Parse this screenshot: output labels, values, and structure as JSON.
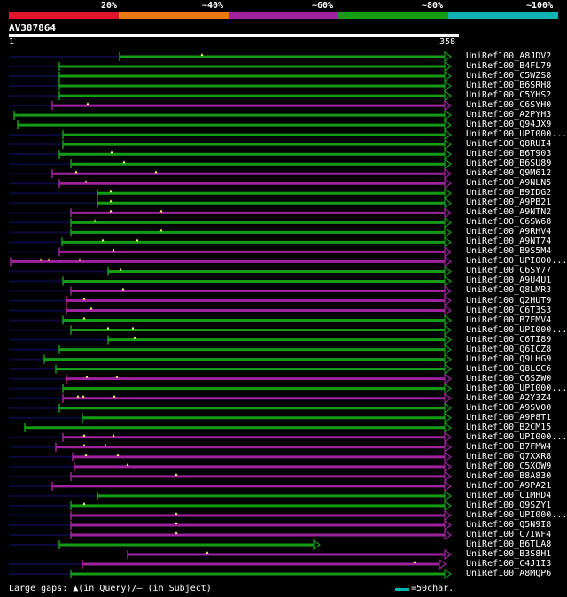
{
  "legend": [
    {
      "label": "20%",
      "color": "#e0142a"
    },
    {
      "label": "~40%",
      "color": "#e87814"
    },
    {
      "label": "~60%",
      "color": "#a0229f"
    },
    {
      "label": "~80%",
      "color": "#139c14"
    },
    {
      "label": "~100%",
      "color": "#12b2b4"
    }
  ],
  "query": {
    "name": "AV387864",
    "start": "1",
    "end": "358"
  },
  "colors": {
    "green": "#139c14",
    "purple": "#a0229f",
    "dim": "#0a0a3c",
    "tick": "#ffff66"
  },
  "hits": [
    {
      "label": "UniRef100_A8JDV2",
      "color": "green",
      "qstart": 135,
      "qend": 503,
      "gap": [
        [
          10,
          135
        ]
      ],
      "ticks": [
        228
      ]
    },
    {
      "label": "UniRef100_B4FL79",
      "color": "green",
      "qstart": 67,
      "qend": 503,
      "gap": [
        [
          10,
          67
        ]
      ],
      "ticks": []
    },
    {
      "label": "UniRef100_C5WZS8",
      "color": "green",
      "qstart": 67,
      "qend": 503,
      "gap": [
        [
          10,
          67
        ]
      ],
      "ticks": []
    },
    {
      "label": "UniRef100_B6SRH8",
      "color": "green",
      "qstart": 67,
      "qend": 503,
      "gap": [
        [
          10,
          67
        ]
      ],
      "ticks": []
    },
    {
      "label": "UniRef100_C5YHS2",
      "color": "green",
      "qstart": 67,
      "qend": 503,
      "gap": [
        [
          10,
          67
        ]
      ],
      "ticks": []
    },
    {
      "label": "UniRef100_C6SYH0",
      "color": "purple",
      "qstart": 59,
      "qend": 503,
      "gap": [
        [
          10,
          59
        ]
      ],
      "ticks": [
        99
      ]
    },
    {
      "label": "UniRef100_A2PYH3",
      "color": "green",
      "qstart": 16,
      "qend": 503,
      "gap": [],
      "ticks": []
    },
    {
      "label": "UniRef100_Q94JX9",
      "color": "green",
      "qstart": 20,
      "qend": 503,
      "gap": [],
      "ticks": []
    },
    {
      "label": "UniRef100_UPI000...",
      "color": "green",
      "qstart": 71,
      "qend": 503,
      "gap": [
        [
          10,
          71
        ]
      ],
      "ticks": []
    },
    {
      "label": "UniRef100_Q8RUI4",
      "color": "green",
      "qstart": 71,
      "qend": 503,
      "gap": [
        [
          10,
          71
        ]
      ],
      "ticks": []
    },
    {
      "label": "UniRef100_B6T903",
      "color": "green",
      "qstart": 67,
      "qend": 503,
      "gap": [
        [
          10,
          67
        ]
      ],
      "ticks": [
        126
      ]
    },
    {
      "label": "UniRef100_B6SU89",
      "color": "green",
      "qstart": 80,
      "qend": 503,
      "gap": [
        [
          10,
          80
        ]
      ],
      "ticks": [
        140
      ]
    },
    {
      "label": "UniRef100_Q9M612",
      "color": "purple",
      "qstart": 59,
      "qend": 503,
      "gap": [
        [
          10,
          59
        ]
      ],
      "ticks": [
        86,
        176
      ]
    },
    {
      "label": "UniRef100_A9NLN5",
      "color": "purple",
      "qstart": 67,
      "qend": 503,
      "gap": [
        [
          10,
          67
        ]
      ],
      "ticks": [
        97
      ]
    },
    {
      "label": "UniRef100_B9IDG2",
      "color": "green",
      "qstart": 110,
      "qend": 503,
      "gap": [
        [
          10,
          110
        ]
      ],
      "ticks": [
        125
      ]
    },
    {
      "label": "UniRef100_A9PB21",
      "color": "green",
      "qstart": 110,
      "qend": 503,
      "gap": [
        [
          10,
          110
        ]
      ],
      "ticks": [
        125
      ]
    },
    {
      "label": "UniRef100_A9NTN2",
      "color": "purple",
      "qstart": 80,
      "qend": 503,
      "gap": [
        [
          10,
          80
        ]
      ],
      "ticks": [
        125,
        182
      ]
    },
    {
      "label": "UniRef100_C6SW68",
      "color": "green",
      "qstart": 80,
      "qend": 503,
      "gap": [
        [
          10,
          80
        ]
      ],
      "ticks": [
        107
      ]
    },
    {
      "label": "UniRef100_A9RHV4",
      "color": "green",
      "qstart": 80,
      "qend": 503,
      "gap": [
        [
          10,
          80
        ]
      ],
      "ticks": [
        182
      ]
    },
    {
      "label": "UniRef100_A9NT74",
      "color": "green",
      "qstart": 70,
      "qend": 503,
      "gap": [
        [
          10,
          70
        ]
      ],
      "ticks": [
        116,
        155
      ]
    },
    {
      "label": "UniRef100_B9S5M4",
      "color": "purple",
      "qstart": 67,
      "qend": 503,
      "gap": [
        [
          10,
          67
        ]
      ],
      "ticks": [
        128
      ]
    },
    {
      "label": "UniRef100_UPI000...",
      "color": "purple",
      "qstart": 12,
      "qend": 503,
      "gap": [],
      "ticks": [
        46,
        55,
        90
      ]
    },
    {
      "label": "UniRef100_C6SY77",
      "color": "green",
      "qstart": 122,
      "qend": 503,
      "gap": [
        [
          10,
          122
        ]
      ],
      "ticks": [
        136
      ]
    },
    {
      "label": "UniRef100_A9U4U1",
      "color": "green",
      "qstart": 71,
      "qend": 503,
      "gap": [
        [
          10,
          71
        ]
      ],
      "ticks": []
    },
    {
      "label": "UniRef100_Q8LMR3",
      "color": "purple",
      "qstart": 80,
      "qend": 503,
      "gap": [
        [
          10,
          80
        ]
      ],
      "ticks": [
        139
      ]
    },
    {
      "label": "UniRef100_Q2HUT9",
      "color": "purple",
      "qstart": 75,
      "qend": 503,
      "gap": [
        [
          10,
          75
        ]
      ],
      "ticks": [
        95
      ]
    },
    {
      "label": "UniRef100_C6T3S3",
      "color": "purple",
      "qstart": 75,
      "qend": 503,
      "gap": [
        [
          10,
          75
        ]
      ],
      "ticks": [
        103
      ]
    },
    {
      "label": "UniRef100_B7FMV4",
      "color": "green",
      "qstart": 71,
      "qend": 503,
      "gap": [
        [
          10,
          71
        ]
      ],
      "ticks": [
        95
      ]
    },
    {
      "label": "UniRef100_UPI000...",
      "color": "green",
      "qstart": 80,
      "qend": 503,
      "gap": [
        [
          10,
          80
        ]
      ],
      "ticks": [
        122,
        150
      ]
    },
    {
      "label": "UniRef100_C6TI89",
      "color": "green",
      "qstart": 122,
      "qend": 503,
      "gap": [
        [
          10,
          122
        ]
      ],
      "ticks": [
        152
      ]
    },
    {
      "label": "UniRef100_Q6ICZ8",
      "color": "green",
      "qstart": 67,
      "qend": 503,
      "gap": [
        [
          10,
          67
        ]
      ],
      "ticks": []
    },
    {
      "label": "UniRef100_Q9LHG9",
      "color": "green",
      "qstart": 50,
      "qend": 503,
      "gap": [
        [
          10,
          50
        ]
      ],
      "ticks": []
    },
    {
      "label": "UniRef100_Q8LGC6",
      "color": "green",
      "qstart": 63,
      "qend": 503,
      "gap": [
        [
          10,
          63
        ]
      ],
      "ticks": []
    },
    {
      "label": "UniRef100_C6SZW0",
      "color": "purple",
      "qstart": 75,
      "qend": 503,
      "gap": [
        [
          10,
          75
        ]
      ],
      "ticks": [
        98,
        132
      ]
    },
    {
      "label": "UniRef100_UPI000...",
      "color": "green",
      "qstart": 71,
      "qend": 503,
      "gap": [
        [
          10,
          71
        ]
      ],
      "ticks": []
    },
    {
      "label": "UniRef100_A2Y3Z4",
      "color": "purple",
      "qstart": 71,
      "qend": 503,
      "gap": [
        [
          10,
          71
        ]
      ],
      "ticks": [
        88,
        94,
        129
      ]
    },
    {
      "label": "UniRef100_A9SV00",
      "color": "green",
      "qstart": 67,
      "qend": 503,
      "gap": [
        [
          10,
          67
        ]
      ],
      "ticks": []
    },
    {
      "label": "UniRef100_A9P8T1",
      "color": "green",
      "qstart": 93,
      "qend": 503,
      "gap": [
        [
          10,
          93
        ]
      ],
      "ticks": []
    },
    {
      "label": "UniRef100_B2CM15",
      "color": "green",
      "qstart": 28,
      "qend": 503,
      "gap": [],
      "ticks": []
    },
    {
      "label": "UniRef100_UPI000...",
      "color": "purple",
      "qstart": 71,
      "qend": 503,
      "gap": [
        [
          10,
          71
        ]
      ],
      "ticks": [
        95,
        128
      ]
    },
    {
      "label": "UniRef100_B7FMW4",
      "color": "purple",
      "qstart": 63,
      "qend": 503,
      "gap": [
        [
          10,
          63
        ]
      ],
      "ticks": [
        95,
        119
      ]
    },
    {
      "label": "UniRef100_Q7XXR8",
      "color": "purple",
      "qstart": 82,
      "qend": 503,
      "gap": [
        [
          10,
          82
        ]
      ],
      "ticks": [
        97,
        133
      ]
    },
    {
      "label": "UniRef100_C5XOW9",
      "color": "purple",
      "qstart": 84,
      "qend": 503,
      "gap": [
        [
          10,
          84
        ]
      ],
      "ticks": [
        144
      ]
    },
    {
      "label": "UniRef100_B8A830",
      "color": "purple",
      "qstart": 80,
      "qend": 503,
      "gap": [
        [
          10,
          80
        ]
      ],
      "ticks": [
        199
      ]
    },
    {
      "label": "UniRef100_A9PA21",
      "color": "purple",
      "qstart": 59,
      "qend": 503,
      "gap": [
        [
          10,
          59
        ]
      ],
      "ticks": []
    },
    {
      "label": "UniRef100_C1MHD4",
      "color": "green",
      "qstart": 110,
      "qend": 503,
      "gap": [
        [
          10,
          110
        ]
      ],
      "ticks": []
    },
    {
      "label": "UniRef100_Q9SZY1",
      "color": "green",
      "qstart": 80,
      "qend": 503,
      "gap": [
        [
          10,
          80
        ]
      ],
      "ticks": [
        95
      ]
    },
    {
      "label": "UniRef100_UPI000...",
      "color": "purple",
      "qstart": 80,
      "qend": 503,
      "gap": [
        [
          10,
          80
        ]
      ],
      "ticks": [
        199
      ]
    },
    {
      "label": "UniRef100_Q5N9I8",
      "color": "purple",
      "qstart": 80,
      "qend": 503,
      "gap": [
        [
          10,
          80
        ]
      ],
      "ticks": [
        199
      ]
    },
    {
      "label": "UniRef100_C7IWF4",
      "color": "purple",
      "qstart": 80,
      "qend": 503,
      "gap": [
        [
          10,
          80
        ]
      ],
      "ticks": [
        199
      ]
    },
    {
      "label": "UniRef100_B6TLA8",
      "color": "green",
      "qstart": 67,
      "qend": 355,
      "gap": [
        [
          10,
          67
        ]
      ],
      "ticks": []
    },
    {
      "label": "UniRef100_B3S8H1",
      "color": "purple",
      "qstart": 144,
      "qend": 503,
      "gap": [],
      "ticks": [
        234
      ]
    },
    {
      "label": "UniRef100_C4J1I3",
      "color": "purple",
      "qstart": 93,
      "qend": 497,
      "gap": [
        [
          10,
          93
        ]
      ],
      "ticks": [
        468
      ]
    },
    {
      "label": "UniRef100_A8MQP6",
      "color": "green",
      "qstart": 80,
      "qend": 503,
      "gap": [
        [
          10,
          80
        ]
      ],
      "ticks": []
    }
  ],
  "footer": {
    "text": "Large gaps: ▲(in Query)/— (in Subject)",
    "scale_label": "=50char."
  }
}
